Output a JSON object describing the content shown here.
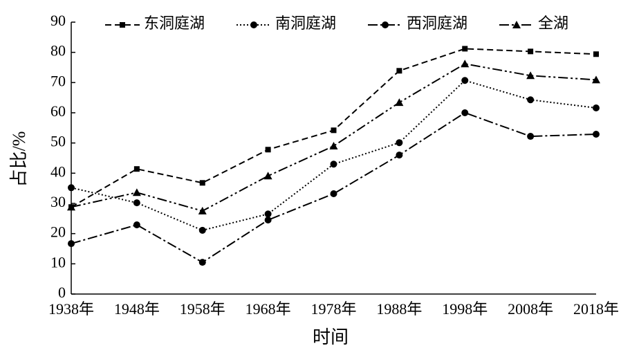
{
  "chart_data": {
    "type": "line",
    "x_label": "时间",
    "y_label": "占比/%",
    "categories": [
      "1938年",
      "1948年",
      "1958年",
      "1968年",
      "1978年",
      "1988年",
      "1998年",
      "2008年",
      "2018年"
    ],
    "series": [
      {
        "name": "东洞庭湖",
        "color": "#000000",
        "dash": "9,5",
        "marker": "square",
        "values": [
          28.8,
          41.4,
          36.8,
          47.8,
          54.2,
          73.9,
          81.2,
          80.3,
          79.4
        ]
      },
      {
        "name": "南洞庭湖",
        "color": "#000000",
        "dash": "2,3",
        "marker": "circle",
        "values": [
          35.2,
          30.2,
          21.1,
          26.5,
          43.0,
          50.1,
          70.7,
          64.3,
          61.6
        ]
      },
      {
        "name": "西洞庭湖",
        "color": "#000000",
        "dash": "14,4,3,4",
        "marker": "circle",
        "values": [
          16.7,
          22.9,
          10.5,
          24.5,
          33.2,
          46.0,
          60.0,
          52.2,
          52.9
        ]
      },
      {
        "name": "全湖",
        "color": "#000000",
        "dash": "14,4,3,4,3,4",
        "marker": "triangle",
        "values": [
          28.8,
          33.6,
          27.5,
          39.1,
          49.0,
          63.4,
          76.2,
          72.3,
          70.9
        ]
      }
    ],
    "ylim": [
      0,
      90
    ],
    "yticks": [
      0,
      10,
      20,
      30,
      40,
      50,
      60,
      70,
      80,
      90
    ],
    "grid": false,
    "legend": "top"
  }
}
